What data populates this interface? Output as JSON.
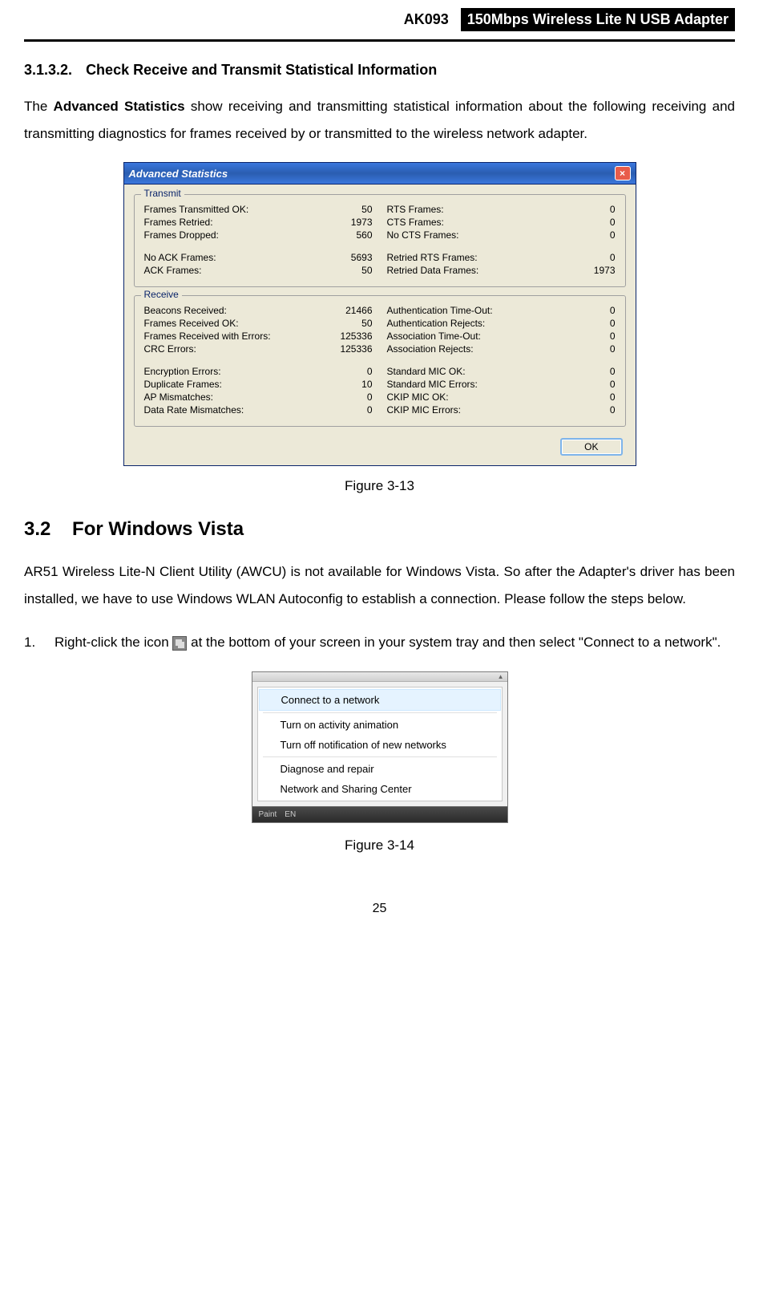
{
  "header": {
    "model": "AK093",
    "product": "150Mbps Wireless Lite N USB Adapter"
  },
  "section1": {
    "number": "3.1.3.2.",
    "title": "Check Receive and Transmit Statistical Information"
  },
  "para1_before": "The ",
  "para1_bold": "Advanced Statistics",
  "para1_after": " show receiving and transmitting statistical information about the following receiving and transmitting diagnostics for frames received by or transmitted to the wireless network adapter.",
  "stats_window": {
    "title": "Advanced Statistics",
    "close_label": "×",
    "transmit_legend": "Transmit",
    "receive_legend": "Receive",
    "transmit_left": [
      {
        "label": "Frames Transmitted OK:",
        "value": "50"
      },
      {
        "label": "Frames Retried:",
        "value": "1973"
      },
      {
        "label": "Frames Dropped:",
        "value": "560"
      }
    ],
    "transmit_left2": [
      {
        "label": "No ACK Frames:",
        "value": "5693"
      },
      {
        "label": "ACK Frames:",
        "value": "50"
      }
    ],
    "transmit_right": [
      {
        "label": "RTS Frames:",
        "value": "0"
      },
      {
        "label": "CTS Frames:",
        "value": "0"
      },
      {
        "label": "No CTS Frames:",
        "value": "0"
      }
    ],
    "transmit_right2": [
      {
        "label": "Retried RTS Frames:",
        "value": "0"
      },
      {
        "label": "Retried Data Frames:",
        "value": "1973"
      }
    ],
    "receive_left": [
      {
        "label": "Beacons Received:",
        "value": "21466"
      },
      {
        "label": "Frames Received OK:",
        "value": "50"
      },
      {
        "label": "Frames Received with Errors:",
        "value": "125336"
      },
      {
        "label": "CRC Errors:",
        "value": "125336"
      }
    ],
    "receive_left2": [
      {
        "label": "Encryption Errors:",
        "value": "0"
      },
      {
        "label": "Duplicate Frames:",
        "value": "10"
      },
      {
        "label": "AP Mismatches:",
        "value": "0"
      },
      {
        "label": "Data Rate Mismatches:",
        "value": "0"
      }
    ],
    "receive_right": [
      {
        "label": "Authentication Time-Out:",
        "value": "0"
      },
      {
        "label": "Authentication Rejects:",
        "value": "0"
      },
      {
        "label": "Association Time-Out:",
        "value": "0"
      },
      {
        "label": "Association Rejects:",
        "value": "0"
      }
    ],
    "receive_right2": [
      {
        "label": "Standard MIC OK:",
        "value": "0"
      },
      {
        "label": "Standard MIC Errors:",
        "value": "0"
      },
      {
        "label": "CKIP MIC OK:",
        "value": "0"
      },
      {
        "label": "CKIP MIC Errors:",
        "value": "0"
      }
    ],
    "ok_button": "OK"
  },
  "figure1_caption": "Figure 3-13",
  "section2": {
    "number": "3.2",
    "title": "For Windows Vista"
  },
  "para2": "AR51 Wireless Lite-N Client Utility (AWCU) is not available for Windows Vista. So after the Adapter's driver has been installed, we have to use Windows WLAN Autoconfig to establish a connection. Please follow the steps below.",
  "step1": {
    "num": "1.",
    "before": "Right-click the icon ",
    "after": " at the bottom of your screen in your system tray and then select \"Connect to a network\"."
  },
  "context_menu": {
    "item1": "Connect to a network",
    "item2": "Turn on activity animation",
    "item3": "Turn off notification of new networks",
    "item4": "Diagnose and repair",
    "item5": "Network and Sharing Center",
    "taskbar_paint": "Paint",
    "taskbar_lang": "EN"
  },
  "figure2_caption": "Figure 3-14",
  "page_number": "25"
}
